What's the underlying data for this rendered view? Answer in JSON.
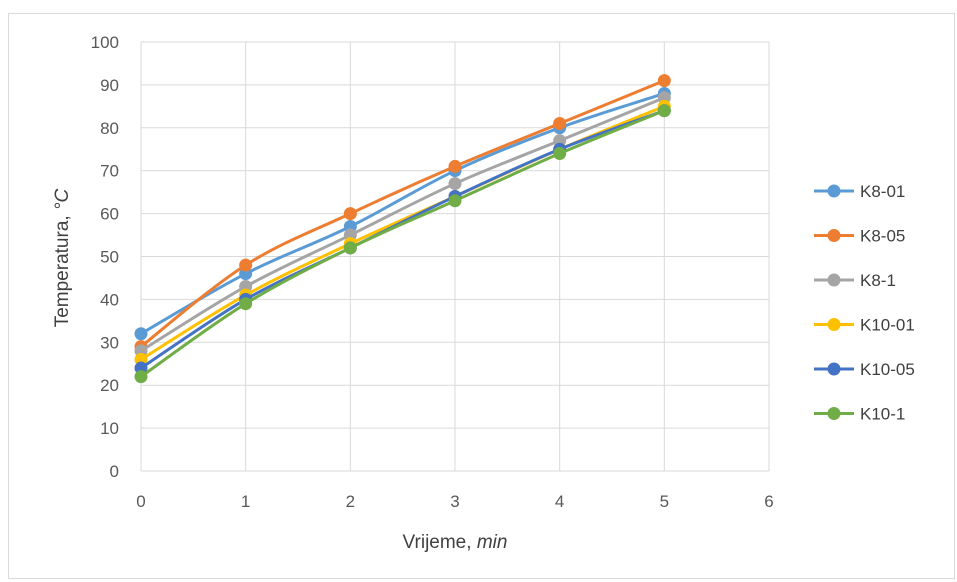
{
  "chart_data": {
    "type": "line",
    "title": "",
    "xlabel": "Vrijeme, ",
    "xlabel_italic": "min",
    "ylabel": "Temperatura, ",
    "ylabel_italic": "°C",
    "x": [
      0,
      1,
      2,
      3,
      4,
      5
    ],
    "xlim": [
      0,
      6
    ],
    "ylim": [
      0,
      100
    ],
    "xticks": [
      0,
      1,
      2,
      3,
      4,
      5,
      6
    ],
    "yticks": [
      0,
      10,
      20,
      30,
      40,
      50,
      60,
      70,
      80,
      90,
      100
    ],
    "grid": true,
    "legend_position": "right",
    "series": [
      {
        "name": "K8-01",
        "color": "#5b9bd5",
        "values": [
          32,
          46,
          57,
          70,
          80,
          88
        ]
      },
      {
        "name": "K8-05",
        "color": "#ed7d31",
        "values": [
          29,
          48,
          60,
          71,
          81,
          91
        ]
      },
      {
        "name": "K8-1",
        "color": "#a5a5a5",
        "values": [
          28,
          43,
          55,
          67,
          77,
          87
        ]
      },
      {
        "name": "K10-01",
        "color": "#ffc000",
        "values": [
          26,
          41,
          53,
          64,
          75,
          85
        ]
      },
      {
        "name": "K10-05",
        "color": "#4472c4",
        "values": [
          24,
          40,
          52,
          64,
          75,
          84
        ]
      },
      {
        "name": "K10-1",
        "color": "#70ad47",
        "values": [
          22,
          39,
          52,
          63,
          74,
          84
        ]
      }
    ]
  }
}
